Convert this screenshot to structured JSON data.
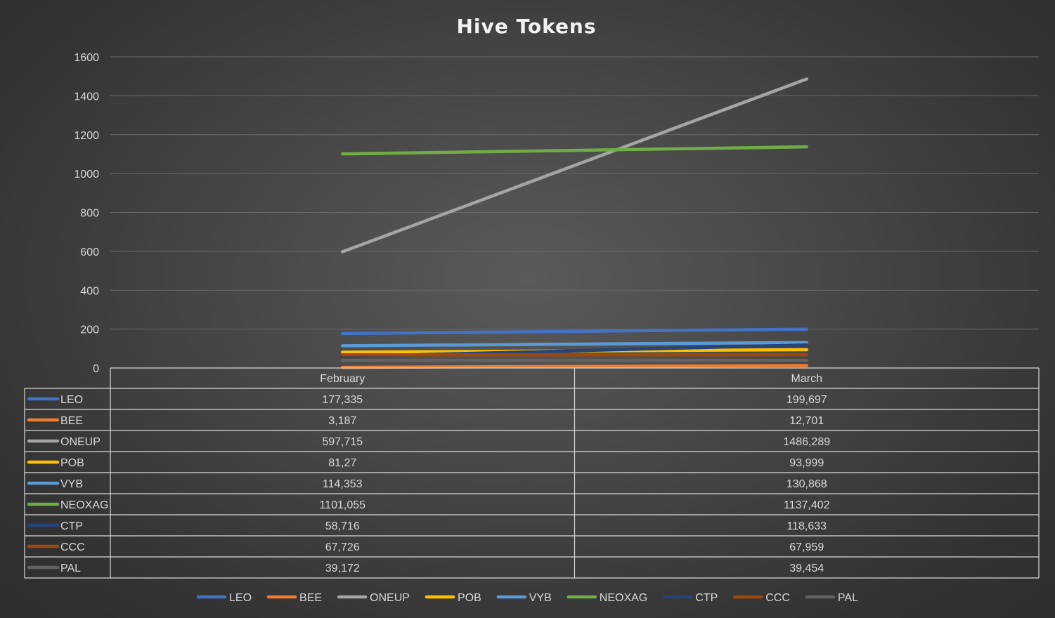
{
  "chart_data": {
    "type": "line",
    "title": "Hive Tokens",
    "categories": [
      "February",
      "March"
    ],
    "ylim": [
      0,
      1600
    ],
    "yticks": [
      0,
      200,
      400,
      600,
      800,
      1000,
      1200,
      1400,
      1600
    ],
    "grid": true,
    "legend_position": "bottom",
    "data_table": true,
    "series": [
      {
        "name": "LEO",
        "color": "#4472c4",
        "values": [
          177.335,
          199.697
        ],
        "labels": [
          "177,335",
          "199,697"
        ]
      },
      {
        "name": "BEE",
        "color": "#ed7d31",
        "values": [
          3.187,
          12.701
        ],
        "labels": [
          "3,187",
          "12,701"
        ]
      },
      {
        "name": "ONEUP",
        "color": "#a5a5a5",
        "values": [
          597.715,
          1486.289
        ],
        "labels": [
          "597,715",
          "1486,289"
        ]
      },
      {
        "name": "POB",
        "color": "#ffc000",
        "values": [
          81.27,
          93.999
        ],
        "labels": [
          "81,27",
          "93,999"
        ]
      },
      {
        "name": "VYB",
        "color": "#5b9bd5",
        "values": [
          114.353,
          130.868
        ],
        "labels": [
          "114,353",
          "130,868"
        ]
      },
      {
        "name": "NEOXAG",
        "color": "#70ad47",
        "values": [
          1101.055,
          1137.402
        ],
        "labels": [
          "1101,055",
          "1137,402"
        ]
      },
      {
        "name": "CTP",
        "color": "#264478",
        "values": [
          58.716,
          118.633
        ],
        "labels": [
          "58,716",
          "118,633"
        ]
      },
      {
        "name": "CCC",
        "color": "#9e480e",
        "values": [
          67.726,
          67.959
        ],
        "labels": [
          "67,726",
          "67,959"
        ]
      },
      {
        "name": "PAL",
        "color": "#636363",
        "values": [
          39.172,
          39.454
        ],
        "labels": [
          "39,172",
          "39,454"
        ]
      }
    ]
  }
}
